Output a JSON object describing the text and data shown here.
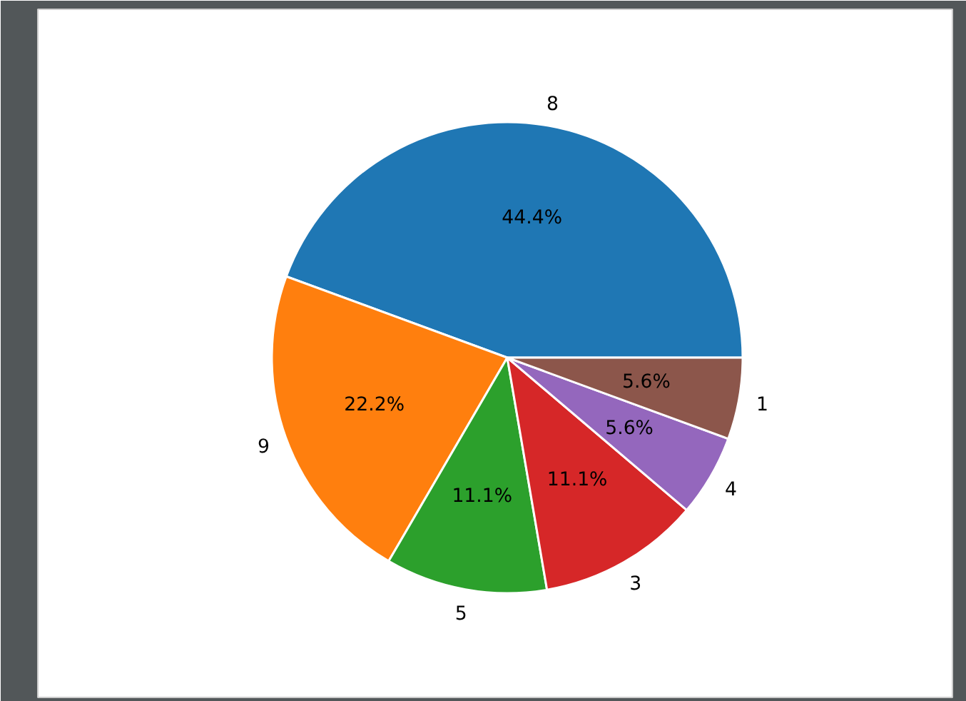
{
  "chart_data": {
    "type": "pie",
    "categories": [
      "8",
      "9",
      "5",
      "3",
      "4",
      "1"
    ],
    "values": [
      44.4,
      22.2,
      11.1,
      11.1,
      5.6,
      5.6
    ],
    "colors": [
      "#1f77b4",
      "#ff7f0e",
      "#2ca02c",
      "#d62728",
      "#9467bd",
      "#8c564b"
    ],
    "value_labels": [
      "44.4%",
      "22.2%",
      "11.1%",
      "11.1%",
      "5.6%",
      "5.6%"
    ]
  }
}
